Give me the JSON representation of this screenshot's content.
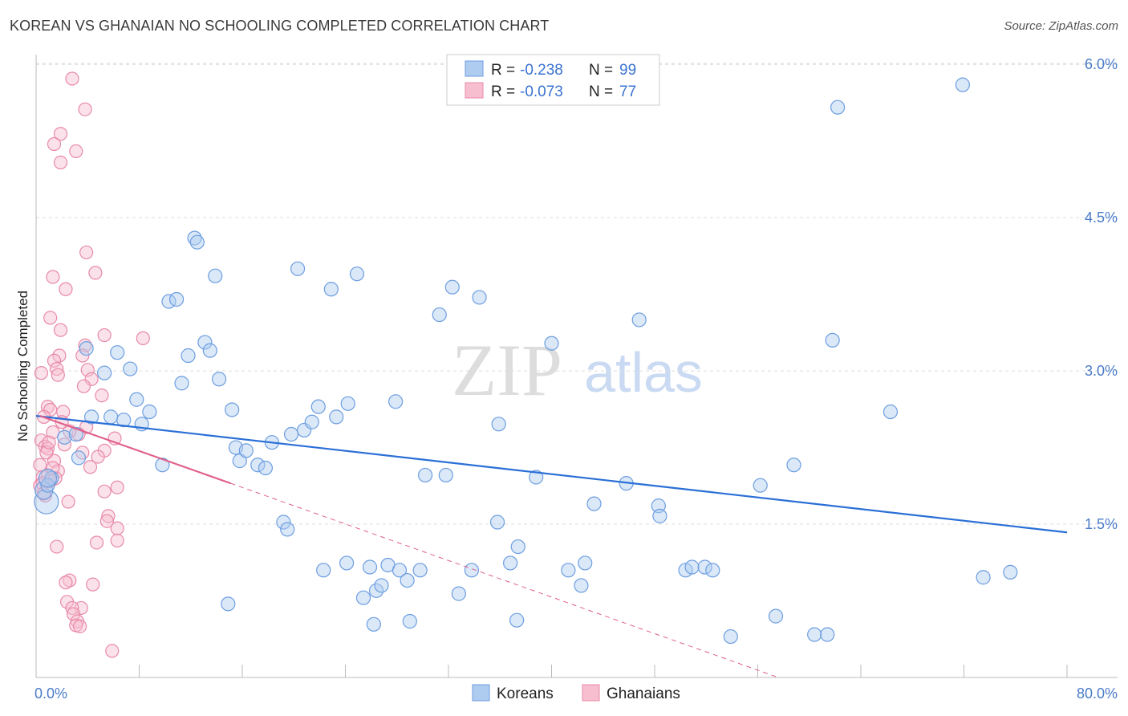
{
  "header": {
    "title": "KOREAN VS GHANAIAN NO SCHOOLING COMPLETED CORRELATION CHART",
    "source": "Source: ZipAtlas.com"
  },
  "watermark": {
    "zip": "ZIP",
    "atlas": "atlas"
  },
  "colors": {
    "blue_fill": "#aecbf0",
    "blue_stroke": "#6d9ee0",
    "blue_line": "#2a6fd6",
    "pink_fill": "#f7bed0",
    "pink_stroke": "#e889a8",
    "pink_line": "#e0608a",
    "grid": "#dcdcdc",
    "tick_text": "#4a7cc9"
  },
  "legend": {
    "rows": [
      {
        "r_label": "R =",
        "r_value": "-0.238",
        "n_label": "N =",
        "n_value": "99"
      },
      {
        "r_label": "R =",
        "r_value": "-0.073",
        "n_label": "N =",
        "n_value": "77"
      }
    ]
  },
  "bottom_legend": {
    "koreans": "Koreans",
    "ghanaians": "Ghanaians"
  },
  "chart_data": {
    "type": "scatter",
    "title": "KOREAN VS GHANAIAN NO SCHOOLING COMPLETED CORRELATION CHART",
    "xlabel": "",
    "ylabel": "No Schooling Completed",
    "xlim": [
      0,
      80
    ],
    "ylim": [
      0,
      6.3
    ],
    "x_tick_labels": [
      "0.0%",
      "80.0%"
    ],
    "y_ticks": [
      1.5,
      3.0,
      4.5,
      6.0
    ],
    "y_tick_labels": [
      "1.5%",
      "3.0%",
      "4.5%",
      "6.0%"
    ],
    "series": [
      {
        "name": "Koreans",
        "r": -0.238,
        "n": 99,
        "trend": {
          "x": [
            0,
            80
          ],
          "y": [
            2.56,
            1.42
          ]
        },
        "points": [
          [
            0.8,
            1.72
          ],
          [
            0.6,
            1.83
          ],
          [
            1.2,
            1.95
          ],
          [
            0.9,
            1.88
          ],
          [
            2.2,
            2.35
          ],
          [
            3.1,
            2.38
          ],
          [
            3.3,
            2.15
          ],
          [
            3.9,
            3.22
          ],
          [
            4.3,
            2.55
          ],
          [
            5.3,
            2.98
          ],
          [
            5.8,
            2.55
          ],
          [
            6.3,
            3.18
          ],
          [
            6.8,
            2.52
          ],
          [
            7.3,
            3.02
          ],
          [
            7.8,
            2.72
          ],
          [
            8.2,
            2.48
          ],
          [
            8.8,
            2.6
          ],
          [
            9.8,
            2.08
          ],
          [
            10.3,
            3.68
          ],
          [
            10.9,
            3.7
          ],
          [
            11.3,
            2.88
          ],
          [
            11.8,
            3.15
          ],
          [
            12.3,
            4.3
          ],
          [
            12.5,
            4.26
          ],
          [
            13.1,
            3.28
          ],
          [
            13.5,
            3.2
          ],
          [
            13.9,
            3.93
          ],
          [
            14.2,
            2.92
          ],
          [
            14.9,
            0.72
          ],
          [
            15.2,
            2.62
          ],
          [
            15.5,
            2.25
          ],
          [
            15.8,
            2.12
          ],
          [
            16.3,
            2.22
          ],
          [
            17.2,
            2.08
          ],
          [
            17.8,
            2.05
          ],
          [
            18.3,
            2.3
          ],
          [
            19.2,
            1.52
          ],
          [
            19.5,
            1.45
          ],
          [
            19.8,
            2.38
          ],
          [
            20.3,
            4.0
          ],
          [
            20.8,
            2.42
          ],
          [
            21.4,
            2.5
          ],
          [
            21.9,
            2.65
          ],
          [
            22.3,
            1.05
          ],
          [
            22.9,
            3.8
          ],
          [
            23.3,
            2.55
          ],
          [
            24.2,
            2.68
          ],
          [
            24.1,
            1.12
          ],
          [
            24.9,
            3.95
          ],
          [
            25.4,
            0.78
          ],
          [
            25.9,
            1.08
          ],
          [
            26.2,
            0.52
          ],
          [
            26.4,
            0.85
          ],
          [
            26.8,
            0.9
          ],
          [
            27.3,
            1.1
          ],
          [
            27.9,
            2.7
          ],
          [
            28.2,
            1.05
          ],
          [
            28.8,
            0.95
          ],
          [
            29.0,
            0.55
          ],
          [
            29.8,
            1.05
          ],
          [
            30.2,
            1.98
          ],
          [
            31.3,
            3.55
          ],
          [
            31.8,
            1.98
          ],
          [
            32.3,
            3.82
          ],
          [
            32.8,
            0.82
          ],
          [
            33.8,
            1.05
          ],
          [
            34.4,
            3.72
          ],
          [
            35.8,
            1.52
          ],
          [
            35.9,
            2.48
          ],
          [
            36.8,
            1.12
          ],
          [
            37.4,
            1.28
          ],
          [
            37.3,
            0.56
          ],
          [
            38.8,
            1.96
          ],
          [
            40.0,
            3.27
          ],
          [
            41.3,
            1.05
          ],
          [
            42.3,
            0.9
          ],
          [
            42.6,
            1.12
          ],
          [
            43.3,
            1.7
          ],
          [
            45.8,
            1.9
          ],
          [
            46.8,
            3.5
          ],
          [
            48.3,
            1.68
          ],
          [
            48.4,
            1.58
          ],
          [
            50.4,
            1.05
          ],
          [
            50.9,
            1.08
          ],
          [
            51.9,
            1.08
          ],
          [
            52.5,
            1.05
          ],
          [
            53.9,
            0.4
          ],
          [
            56.2,
            1.88
          ],
          [
            57.4,
            0.6
          ],
          [
            58.8,
            2.08
          ],
          [
            60.4,
            0.42
          ],
          [
            61.4,
            0.42
          ],
          [
            61.8,
            3.3
          ],
          [
            62.2,
            5.58
          ],
          [
            66.3,
            2.6
          ],
          [
            71.9,
            5.8
          ],
          [
            73.5,
            0.98
          ],
          [
            75.6,
            1.03
          ],
          [
            0.9,
            1.95
          ]
        ]
      },
      {
        "name": "Ghanaians",
        "r": -0.073,
        "n": 77,
        "trend_solid": {
          "x": [
            0.3,
            15.1
          ],
          "y": [
            2.56,
            1.9
          ]
        },
        "trend_dashed": {
          "x": [
            15.1,
            57.6
          ],
          "y": [
            1.9,
            0.0
          ]
        },
        "points": [
          [
            2.8,
            5.86
          ],
          [
            3.8,
            5.56
          ],
          [
            1.9,
            5.32
          ],
          [
            1.4,
            5.22
          ],
          [
            3.1,
            5.15
          ],
          [
            1.9,
            5.04
          ],
          [
            3.9,
            4.16
          ],
          [
            4.6,
            3.96
          ],
          [
            1.3,
            3.92
          ],
          [
            2.3,
            3.8
          ],
          [
            1.1,
            3.52
          ],
          [
            1.9,
            3.4
          ],
          [
            5.3,
            3.35
          ],
          [
            8.3,
            3.32
          ],
          [
            3.8,
            3.25
          ],
          [
            1.8,
            3.15
          ],
          [
            1.4,
            3.1
          ],
          [
            3.6,
            3.15
          ],
          [
            1.6,
            3.02
          ],
          [
            1.7,
            2.96
          ],
          [
            0.4,
            2.98
          ],
          [
            4.0,
            3.01
          ],
          [
            4.3,
            2.92
          ],
          [
            5.1,
            2.76
          ],
          [
            3.7,
            2.85
          ],
          [
            0.9,
            2.65
          ],
          [
            1.1,
            2.62
          ],
          [
            2.1,
            2.6
          ],
          [
            0.6,
            2.55
          ],
          [
            3.9,
            2.45
          ],
          [
            3.3,
            2.38
          ],
          [
            1.3,
            2.4
          ],
          [
            0.4,
            2.32
          ],
          [
            6.1,
            2.34
          ],
          [
            0.7,
            2.26
          ],
          [
            0.9,
            2.24
          ],
          [
            2.2,
            2.28
          ],
          [
            5.3,
            2.22
          ],
          [
            3.6,
            2.2
          ],
          [
            4.8,
            2.16
          ],
          [
            1.4,
            2.12
          ],
          [
            0.3,
            2.08
          ],
          [
            4.2,
            2.06
          ],
          [
            1.7,
            2.02
          ],
          [
            0.5,
            1.96
          ],
          [
            0.9,
            1.98
          ],
          [
            1.1,
            1.92
          ],
          [
            0.3,
            1.88
          ],
          [
            6.3,
            1.86
          ],
          [
            5.3,
            1.82
          ],
          [
            0.7,
            1.78
          ],
          [
            2.5,
            1.72
          ],
          [
            5.6,
            1.58
          ],
          [
            5.5,
            1.53
          ],
          [
            6.3,
            1.46
          ],
          [
            6.3,
            1.34
          ],
          [
            4.7,
            1.32
          ],
          [
            1.6,
            1.28
          ],
          [
            2.6,
            0.95
          ],
          [
            2.3,
            0.93
          ],
          [
            4.4,
            0.91
          ],
          [
            2.4,
            0.74
          ],
          [
            3.5,
            0.68
          ],
          [
            2.8,
            0.68
          ],
          [
            2.9,
            0.62
          ],
          [
            3.2,
            0.55
          ],
          [
            3.1,
            0.51
          ],
          [
            3.4,
            0.5
          ],
          [
            5.9,
            0.26
          ],
          [
            1.5,
            1.95
          ],
          [
            0.8,
            2.2
          ],
          [
            2.6,
            2.41
          ],
          [
            0.5,
            1.9
          ],
          [
            1.3,
            2.05
          ],
          [
            1.0,
            2.3
          ],
          [
            0.6,
            1.8
          ],
          [
            2.0,
            2.5
          ]
        ]
      }
    ]
  }
}
